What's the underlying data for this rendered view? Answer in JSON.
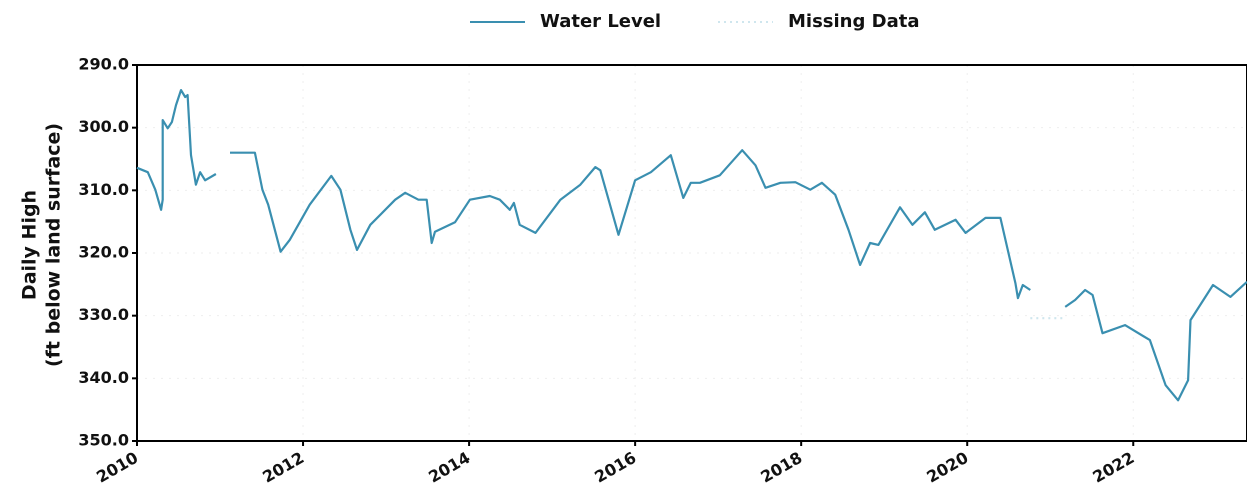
{
  "chart_data": {
    "type": "line",
    "y_label": [
      "Daily High",
      "(ft below land surface)"
    ],
    "y_inverted": true,
    "grid": true,
    "legend": "top",
    "xlim": [
      2010,
      2023.37
    ],
    "xticks": [
      2010,
      2012,
      2014,
      2016,
      2018,
      2020,
      2022
    ],
    "ylim": [
      290,
      350
    ],
    "yticks": [
      {
        "value": 290,
        "label": "290.0"
      },
      {
        "value": 300,
        "label": "300.0"
      },
      {
        "value": 310,
        "label": "310.0"
      },
      {
        "value": 320,
        "label": "320.0"
      },
      {
        "value": 330,
        "label": "330.0"
      },
      {
        "value": 340,
        "label": "340.0"
      },
      {
        "value": 350,
        "label": "350.0"
      }
    ],
    "series": [
      {
        "name": "Water Level",
        "color": "#3a8fb0",
        "dash": false,
        "x": [
          2010.0,
          2010.13,
          2010.22,
          2010.29,
          2010.31,
          2010.31,
          2010.37,
          2010.42,
          2010.47,
          2010.53,
          2010.58,
          2010.61,
          2010.65,
          2010.71,
          2010.76,
          2010.82,
          2010.95,
          2011.03,
          2011.12,
          2011.42,
          2011.51,
          2011.58,
          2011.73,
          2011.84,
          2012.08,
          2012.34,
          2012.45,
          2012.57,
          2012.65,
          2012.81,
          2013.11,
          2013.23,
          2013.39,
          2013.49,
          2013.55,
          2013.59,
          2013.83,
          2014.01,
          2014.25,
          2014.37,
          2014.49,
          2014.54,
          2014.61,
          2014.8,
          2015.1,
          2015.34,
          2015.52,
          2015.58,
          2015.8,
          2016.0,
          2016.19,
          2016.43,
          2016.58,
          2016.67,
          2016.78,
          2017.02,
          2017.29,
          2017.45,
          2017.57,
          2017.75,
          2017.93,
          2018.11,
          2018.25,
          2018.41,
          2018.57,
          2018.71,
          2018.83,
          2018.93,
          2019.19,
          2019.34,
          2019.49,
          2019.61,
          2019.86,
          2019.98,
          2020.22,
          2020.4,
          2020.58,
          2020.61,
          2020.67,
          2020.76,
          2020.97,
          2021.18,
          2021.3,
          2021.42,
          2021.51,
          2021.63,
          2021.9,
          2022.2,
          2022.39,
          2022.54,
          2022.66,
          2022.69,
          2022.96,
          2023.17,
          2023.37
        ],
        "values": [
          306.4,
          307.1,
          309.9,
          313.1,
          311.5,
          298.8,
          300.1,
          299.1,
          296.4,
          294.0,
          295.1,
          294.8,
          304.4,
          309.1,
          307.1,
          308.4,
          307.4,
          null,
          304.0,
          304.0,
          309.9,
          312.3,
          319.8,
          317.9,
          312.3,
          307.7,
          309.9,
          316.3,
          319.5,
          315.5,
          311.5,
          310.4,
          311.5,
          311.5,
          318.4,
          316.6,
          315.1,
          311.5,
          310.9,
          311.5,
          313.1,
          312.0,
          315.5,
          316.8,
          311.5,
          309.1,
          306.3,
          306.8,
          317.1,
          308.4,
          307.1,
          304.4,
          311.2,
          308.8,
          308.8,
          307.6,
          303.6,
          306.0,
          309.6,
          308.8,
          308.7,
          309.9,
          308.8,
          310.7,
          316.3,
          321.9,
          318.4,
          318.7,
          312.7,
          315.5,
          313.5,
          316.3,
          314.7,
          316.8,
          314.4,
          314.4,
          324.8,
          327.2,
          325.1,
          325.9,
          null,
          328.6,
          327.5,
          325.9,
          326.7,
          332.8,
          331.5,
          333.9,
          341.1,
          343.5,
          340.3,
          330.7,
          325.1,
          327.0,
          324.6
        ]
      },
      {
        "name": "Missing Data",
        "color": "#cfe6ee",
        "dash": true,
        "x": [
          2020.76,
          2021.18
        ],
        "values": [
          330.4,
          330.4
        ]
      }
    ]
  }
}
